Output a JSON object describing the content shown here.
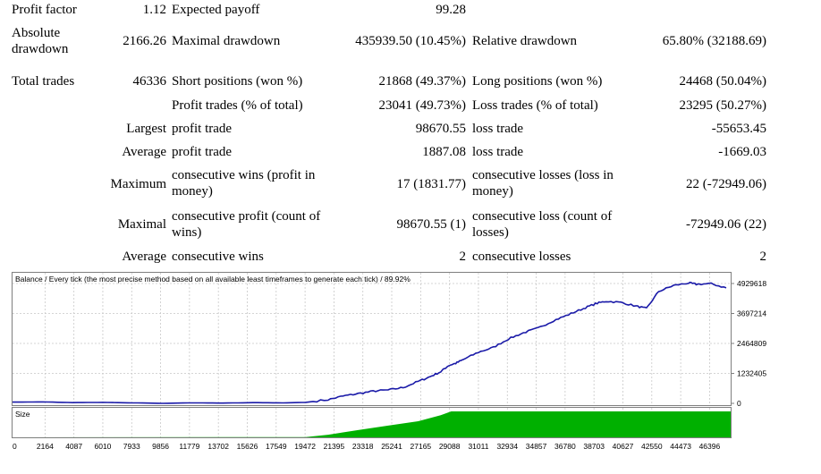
{
  "report": {
    "profit_factor_label": "Profit factor",
    "profit_factor_value": "1.12",
    "expected_payoff_label": "Expected payoff",
    "expected_payoff_value": "99.28",
    "absolute_drawdown_label": "Absolute drawdown",
    "absolute_drawdown_value": "2166.26",
    "maximal_drawdown_label": "Maximal drawdown",
    "maximal_drawdown_value": "435939.50 (10.45%)",
    "relative_drawdown_label": "Relative drawdown",
    "relative_drawdown_value": "65.80% (32188.69)",
    "total_trades_label": "Total trades",
    "total_trades_value": "46336",
    "short_positions_label": "Short positions (won %)",
    "short_positions_value": "21868 (49.37%)",
    "long_positions_label": "Long positions (won %)",
    "long_positions_value": "24468 (50.04%)",
    "profit_trades_label": "Profit trades (% of total)",
    "profit_trades_value": "23041 (49.73%)",
    "loss_trades_label": "Loss trades (% of total)",
    "loss_trades_value": "23295 (50.27%)",
    "largest_label": "Largest",
    "largest_profit_label": "profit trade",
    "largest_profit_value": "98670.55",
    "largest_loss_label": "loss trade",
    "largest_loss_value": "-55653.45",
    "average_label": "Average",
    "average_profit_label": "profit trade",
    "average_profit_value": "1887.08",
    "average_loss_label": "loss trade",
    "average_loss_value": "-1669.03",
    "maximum_label": "Maximum",
    "max_cons_wins_label": "consecutive wins (profit in money)",
    "max_cons_wins_value": "17 (1831.77)",
    "max_cons_losses_label": "consecutive losses (loss in money)",
    "max_cons_losses_value": "22 (-72949.06)",
    "maximal_label": "Maximal",
    "maximal_cons_profit_label": "consecutive profit (count of wins)",
    "maximal_cons_profit_value": "98670.55 (1)",
    "maximal_cons_loss_label": "consecutive loss (count of losses)",
    "maximal_cons_loss_value": "-72949.06 (22)",
    "average2_label": "Average",
    "avg_cons_wins_label": "consecutive wins",
    "avg_cons_wins_value": "2",
    "avg_cons_losses_label": "consecutive losses",
    "avg_cons_losses_value": "2"
  },
  "chart_data": [
    {
      "type": "line",
      "title": "Balance / Every tick (the most precise method based on all available least timeframes to generate each tick) / 89.92%",
      "line_color": "#1a1aa8",
      "grid": true,
      "y_ticks": [
        0,
        1232405,
        2464809,
        3697214,
        4929618
      ],
      "ylim": [
        0,
        5150000
      ],
      "xlim": [
        0,
        47800
      ],
      "x": [
        0,
        2000,
        4000,
        6000,
        8000,
        10000,
        12000,
        14000,
        16000,
        18000,
        19500,
        21000,
        22000,
        23000,
        24000,
        25000,
        26000,
        27000,
        27800,
        28500,
        29000,
        29500,
        30000,
        31000,
        32000,
        33000,
        34000,
        35000,
        36000,
        37000,
        38000,
        38800,
        39500,
        40500,
        41500,
        42200,
        43000,
        44000,
        45000,
        45500,
        46500,
        47500
      ],
      "y": [
        50000,
        60000,
        30000,
        40000,
        20000,
        0,
        20000,
        10000,
        30000,
        20000,
        40000,
        150000,
        300000,
        400000,
        500000,
        550000,
        650000,
        900000,
        1100000,
        1300000,
        1550000,
        1650000,
        1800000,
        2100000,
        2300000,
        2650000,
        2900000,
        3100000,
        3400000,
        3650000,
        3900000,
        4100000,
        4200000,
        4150000,
        4000000,
        3900000,
        4600000,
        4850000,
        4950000,
        4900000,
        4920000,
        4750000
      ]
    },
    {
      "type": "area",
      "title": "Size",
      "fill_color": "#00b000",
      "x_ticks": [
        0,
        2164,
        4087,
        6010,
        7933,
        9856,
        11779,
        13702,
        15626,
        17549,
        19472,
        21395,
        23318,
        25241,
        27165,
        29088,
        31011,
        32934,
        34857,
        36780,
        38703,
        40627,
        42550,
        44473,
        46396
      ],
      "x": [
        0,
        19500,
        21000,
        23000,
        25000,
        27000,
        28500,
        29200,
        47800
      ],
      "values": [
        0.0,
        0.01,
        0.1,
        0.28,
        0.45,
        0.62,
        0.85,
        1.0,
        1.0
      ]
    }
  ]
}
